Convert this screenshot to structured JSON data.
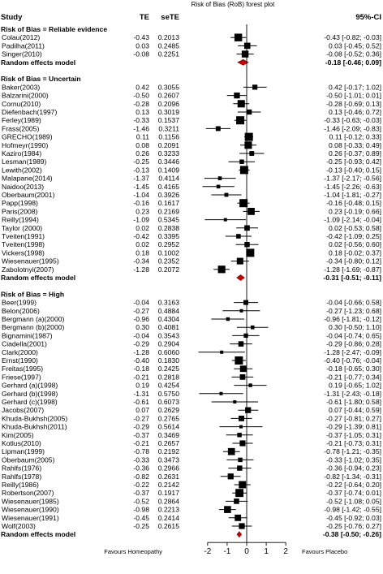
{
  "chart_data": {
    "type": "forest",
    "title": "Risk of Bias (RoB) forest plot",
    "column_headers": {
      "study": "Study",
      "te": "TE",
      "sete": "seTE",
      "ci": "95%-CI"
    },
    "xlim": [
      -2.45,
      2.2
    ],
    "xticks": [
      "-2",
      "-1",
      "0",
      "1",
      "2"
    ],
    "xticks_values": [
      -2,
      -1,
      0,
      1,
      2
    ],
    "reference_line": 0,
    "favours_left": "Favours Homeopathy",
    "favours_right": "Favours Placebo",
    "groups": [
      {
        "header": "Risk of Bias = Reliable evidence",
        "studies": [
          {
            "study": "Colau(2012)",
            "te": "-0.43",
            "sete": "0.2013",
            "ci_text": "-0.43   [-0.82; -0.03]",
            "est": -0.43,
            "lo": -0.82,
            "hi": -0.03
          },
          {
            "study": "Padilha(2011)",
            "te": "0.03",
            "sete": "0.2485",
            "ci_text": "0.03   [-0.45;  0.52]",
            "est": 0.03,
            "lo": -0.45,
            "hi": 0.52
          },
          {
            "study": "Singer(2010)",
            "te": "-0.08",
            "sete": "0.2251",
            "ci_text": "-0.08   [-0.52;  0.36]",
            "est": -0.08,
            "lo": -0.52,
            "hi": 0.36
          }
        ],
        "summary": {
          "label": "Random effects model",
          "ci_text": "-0.18   [-0.46;  0.09]",
          "est": -0.18,
          "lo": -0.46,
          "hi": 0.09
        }
      },
      {
        "header": "Risk of Bias = Uncertain",
        "studies": [
          {
            "study": "Baker(2003)",
            "te": "0.42",
            "sete": "0.3055",
            "ci_text": "0.42   [-0.17;  1.02]",
            "est": 0.42,
            "lo": -0.17,
            "hi": 1.02
          },
          {
            "study": "Balzarini(2000)",
            "te": "-0.50",
            "sete": "0.2607",
            "ci_text": "-0.50   [-1.01;  0.01]",
            "est": -0.5,
            "lo": -1.01,
            "hi": 0.01
          },
          {
            "study": "Cornu(2010)",
            "te": "-0.28",
            "sete": "0.2096",
            "ci_text": "-0.28   [-0.69;  0.13]",
            "est": -0.28,
            "lo": -0.69,
            "hi": 0.13
          },
          {
            "study": "Diefenbach(1997)",
            "te": "0.13",
            "sete": "0.3019",
            "ci_text": "0.13   [-0.46;  0.72]",
            "est": 0.13,
            "lo": -0.46,
            "hi": 0.72
          },
          {
            "study": "Ferley(1989)",
            "te": "-0.33",
            "sete": "0.1537",
            "ci_text": "-0.33   [-0.63; -0.03]",
            "est": -0.33,
            "lo": -0.63,
            "hi": -0.03
          },
          {
            "study": "Frass(2005)",
            "te": "-1.46",
            "sete": "0.3211",
            "ci_text": "-1.46   [-2.09; -0.83]",
            "est": -1.46,
            "lo": -2.09,
            "hi": -0.83
          },
          {
            "study": "GRECHO(1989)",
            "te": "0.11",
            "sete": "0.1156",
            "ci_text": "0.11   [-0.12;  0.33]",
            "est": 0.11,
            "lo": -0.12,
            "hi": 0.33
          },
          {
            "study": "Hofmeyr(1990)",
            "te": "0.08",
            "sete": "0.2091",
            "ci_text": "0.08   [-0.33;  0.49]",
            "est": 0.08,
            "lo": -0.33,
            "hi": 0.49
          },
          {
            "study": "Kaziro(1984)",
            "te": "0.26",
            "sete": "0.3233",
            "ci_text": "0.26   [-0.37;  0.89]",
            "est": 0.26,
            "lo": -0.37,
            "hi": 0.89
          },
          {
            "study": "Lesman(1989)",
            "te": "-0.25",
            "sete": "0.3446",
            "ci_text": "-0.25   [-0.93;  0.42]",
            "est": -0.25,
            "lo": -0.93,
            "hi": 0.42
          },
          {
            "study": "Lewith(2002)",
            "te": "-0.13",
            "sete": "0.1409",
            "ci_text": "-0.13   [-0.40;  0.15]",
            "est": -0.13,
            "lo": -0.4,
            "hi": 0.15
          },
          {
            "study": "Malapane(2014)",
            "te": "-1.37",
            "sete": "0.4114",
            "ci_text": "-1.37   [-2.17; -0.56]",
            "est": -1.37,
            "lo": -2.17,
            "hi": -0.56
          },
          {
            "study": "Naidoo(2013)",
            "te": "-1.45",
            "sete": "0.4165",
            "ci_text": "-1.45   [-2.26; -0.63]",
            "est": -1.45,
            "lo": -2.26,
            "hi": -0.63
          },
          {
            "study": "Oberbaum(2001)",
            "te": "-1.04",
            "sete": "0.3926",
            "ci_text": "-1.04   [-1.81; -0.27]",
            "est": -1.04,
            "lo": -1.81,
            "hi": -0.27
          },
          {
            "study": "Papp(1998)",
            "te": "-0.16",
            "sete": "0.1617",
            "ci_text": "-0.16   [-0.48;  0.15]",
            "est": -0.16,
            "lo": -0.48,
            "hi": 0.15
          },
          {
            "study": "Paris(2008)",
            "te": "0.23",
            "sete": "0.2169",
            "ci_text": "0.23   [-0.19;  0.66]",
            "est": 0.23,
            "lo": -0.19,
            "hi": 0.66
          },
          {
            "study": "Reilly(1994)",
            "te": "-1.09",
            "sete": "0.5345",
            "ci_text": "-1.09   [-2.14; -0.04]",
            "est": -1.09,
            "lo": -2.14,
            "hi": -0.04
          },
          {
            "study": "Taylor (2000)",
            "te": "0.02",
            "sete": "0.2838",
            "ci_text": "0.02   [-0.53;  0.58]",
            "est": 0.02,
            "lo": -0.53,
            "hi": 0.58
          },
          {
            "study": "Tveiten(1991)",
            "te": "-0.42",
            "sete": "0.3395",
            "ci_text": "-0.42   [-1.09;  0.25]",
            "est": -0.42,
            "lo": -1.09,
            "hi": 0.25
          },
          {
            "study": "Tveiten(1998)",
            "te": "0.02",
            "sete": "0.2952",
            "ci_text": "0.02   [-0.56;  0.60]",
            "est": 0.02,
            "lo": -0.56,
            "hi": 0.6
          },
          {
            "study": "Vickers(1998)",
            "te": "0.18",
            "sete": "0.1002",
            "ci_text": "0.18   [-0.02;  0.37]",
            "est": 0.18,
            "lo": -0.02,
            "hi": 0.37
          },
          {
            "study": "Wiesenauer(1995)",
            "te": "-0.34",
            "sete": "0.2352",
            "ci_text": "-0.34   [-0.80;  0.12]",
            "est": -0.34,
            "lo": -0.8,
            "hi": 0.12
          },
          {
            "study": "Zabolotnyi(2007)",
            "te": "-1.28",
            "sete": "0.2072",
            "ci_text": "-1.28   [-1.69; -0.87]",
            "est": -1.28,
            "lo": -1.69,
            "hi": -0.87
          }
        ],
        "summary": {
          "label": "Random effects model",
          "ci_text": "-0.31   [-0.51; -0.11]",
          "est": -0.31,
          "lo": -0.51,
          "hi": -0.11
        }
      },
      {
        "header": "Risk of Bias = High",
        "studies": [
          {
            "study": "Beer(1999)",
            "te": "-0.04",
            "sete": "0.3163",
            "ci_text": "-0.04   [-0.66;  0.58]",
            "est": -0.04,
            "lo": -0.66,
            "hi": 0.58
          },
          {
            "study": "Belon(2006)",
            "te": "-0.27",
            "sete": "0.4884",
            "ci_text": "-0.27   [-1.23;  0.68]",
            "est": -0.27,
            "lo": -1.23,
            "hi": 0.68
          },
          {
            "study": "Bergmann (a)(2000)",
            "te": "-0.96",
            "sete": "0.4304",
            "ci_text": "-0.96   [-1.81; -0.12]",
            "est": -0.96,
            "lo": -1.81,
            "hi": -0.12
          },
          {
            "study": "Bergmann (b)(2000)",
            "te": "0.30",
            "sete": "0.4081",
            "ci_text": "0.30   [-0.50;  1.10]",
            "est": 0.3,
            "lo": -0.5,
            "hi": 1.1
          },
          {
            "study": "Bignamini(1987)",
            "te": "-0.04",
            "sete": "0.3543",
            "ci_text": "-0.04   [-0.74;  0.65]",
            "est": -0.04,
            "lo": -0.74,
            "hi": 0.65
          },
          {
            "study": "Ciadella(2001)",
            "te": "-0.29",
            "sete": "0.2904",
            "ci_text": "-0.29   [-0.86;  0.28]",
            "est": -0.29,
            "lo": -0.86,
            "hi": 0.28
          },
          {
            "study": "Clark(2000)",
            "te": "-1.28",
            "sete": "0.6060",
            "ci_text": "-1.28   [-2.47; -0.09]",
            "est": -1.28,
            "lo": -2.47,
            "hi": -0.09
          },
          {
            "study": "Ernst(1990)",
            "te": "-0.40",
            "sete": "0.1830",
            "ci_text": "-0.40   [-0.76; -0.04]",
            "est": -0.4,
            "lo": -0.76,
            "hi": -0.04
          },
          {
            "study": "Freitas(1995)",
            "te": "-0.18",
            "sete": "0.2425",
            "ci_text": "-0.18   [-0.65;  0.30]",
            "est": -0.18,
            "lo": -0.65,
            "hi": 0.3
          },
          {
            "study": "Friese(1997)",
            "te": "-0.21",
            "sete": "0.2818",
            "ci_text": "-0.21   [-0.77;  0.34]",
            "est": -0.21,
            "lo": -0.77,
            "hi": 0.34
          },
          {
            "study": "Gerhard (a)(1998)",
            "te": "0.19",
            "sete": "0.4254",
            "ci_text": "0.19   [-0.65;  1.02]",
            "est": 0.19,
            "lo": -0.65,
            "hi": 1.02
          },
          {
            "study": "Gerhard (b)(1998)",
            "te": "-1.31",
            "sete": "0.5750",
            "ci_text": "-1.31   [-2.43; -0.18]",
            "est": -1.31,
            "lo": -2.43,
            "hi": -0.18
          },
          {
            "study": "Gerhard (c)(1998)",
            "te": "-0.61",
            "sete": "0.6073",
            "ci_text": "-0.61   [-1.80;  0.58]",
            "est": -0.61,
            "lo": -1.8,
            "hi": 0.58
          },
          {
            "study": "Jacobs(2007)",
            "te": "0.07",
            "sete": "0.2629",
            "ci_text": "0.07   [-0.44;  0.59]",
            "est": 0.07,
            "lo": -0.44,
            "hi": 0.59
          },
          {
            "study": "Khuda-Bukhsh(2005)",
            "te": "-0.27",
            "sete": "0.2765",
            "ci_text": "-0.27   [-0.81;  0.27]",
            "est": -0.27,
            "lo": -0.81,
            "hi": 0.27
          },
          {
            "study": "Khuda-Bukhsh(2011)",
            "te": "-0.29",
            "sete": "0.5614",
            "ci_text": "-0.29   [-1.39;  0.81]",
            "est": -0.29,
            "lo": -1.39,
            "hi": 0.81
          },
          {
            "study": "Kim(2005)",
            "te": "-0.37",
            "sete": "0.3469",
            "ci_text": "-0.37   [-1.05;  0.31]",
            "est": -0.37,
            "lo": -1.05,
            "hi": 0.31
          },
          {
            "study": "Kotlus(2010)",
            "te": "-0.21",
            "sete": "0.2657",
            "ci_text": "-0.21   [-0.73;  0.31]",
            "est": -0.21,
            "lo": -0.73,
            "hi": 0.31
          },
          {
            "study": "Lipman(1999)",
            "te": "-0.78",
            "sete": "0.2192",
            "ci_text": "-0.78   [-1.21; -0.35]",
            "est": -0.78,
            "lo": -1.21,
            "hi": -0.35
          },
          {
            "study": "Oberbaum(2005)",
            "te": "-0.33",
            "sete": "0.3473",
            "ci_text": "-0.33   [-1.02;  0.35]",
            "est": -0.33,
            "lo": -1.02,
            "hi": 0.35
          },
          {
            "study": "Rahlfs(1976)",
            "te": "-0.36",
            "sete": "0.2966",
            "ci_text": "-0.36   [-0.94;  0.23]",
            "est": -0.36,
            "lo": -0.94,
            "hi": 0.23
          },
          {
            "study": "Rahlfs(1978)",
            "te": "-0.82",
            "sete": "0.2631",
            "ci_text": "-0.82   [-1.34; -0.31]",
            "est": -0.82,
            "lo": -1.34,
            "hi": -0.31
          },
          {
            "study": "Reilly(1986)",
            "te": "-0.22",
            "sete": "0.2142",
            "ci_text": "-0.22   [-0.64;  0.20]",
            "est": -0.22,
            "lo": -0.64,
            "hi": 0.2
          },
          {
            "study": "Robertson(2007)",
            "te": "-0.37",
            "sete": "0.1917",
            "ci_text": "-0.37   [-0.74;  0.01]",
            "est": -0.37,
            "lo": -0.74,
            "hi": 0.01
          },
          {
            "study": "Wiesenauer(1985)",
            "te": "-0.52",
            "sete": "0.2864",
            "ci_text": "-0.52   [-1.08;  0.05]",
            "est": -0.52,
            "lo": -1.08,
            "hi": 0.05
          },
          {
            "study": "Wiesenauer(1990)",
            "te": "-0.98",
            "sete": "0.2213",
            "ci_text": "-0.98   [-1.42; -0.55]",
            "est": -0.98,
            "lo": -1.42,
            "hi": -0.55
          },
          {
            "study": "Wiesenauer(1991)",
            "te": "-0.45",
            "sete": "0.2414",
            "ci_text": "-0.45   [-0.92;  0.03]",
            "est": -0.45,
            "lo": -0.92,
            "hi": 0.03
          },
          {
            "study": "Wolf(2003)",
            "te": "-0.25",
            "sete": "0.2615",
            "ci_text": "-0.25   [-0.76;  0.27]",
            "est": -0.25,
            "lo": -0.76,
            "hi": 0.27
          }
        ],
        "summary": {
          "label": "Random effects model",
          "ci_text": "-0.38   [-0.50; -0.26]",
          "est": -0.38,
          "lo": -0.5,
          "hi": -0.26
        }
      }
    ],
    "colors": {
      "summary_diamond": "#cc0000",
      "marker": "#000000",
      "line": "#000000"
    }
  }
}
